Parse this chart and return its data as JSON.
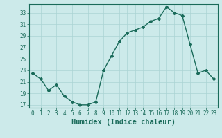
{
  "x": [
    0,
    1,
    2,
    3,
    4,
    5,
    6,
    7,
    8,
    9,
    10,
    11,
    12,
    13,
    14,
    15,
    16,
    17,
    18,
    19,
    20,
    21,
    22,
    23
  ],
  "y": [
    22.5,
    21.5,
    19.5,
    20.5,
    18.5,
    17.5,
    17.0,
    17.0,
    17.5,
    23.0,
    25.5,
    28.0,
    29.5,
    30.0,
    30.5,
    31.5,
    32.0,
    34.0,
    33.0,
    32.5,
    27.5,
    22.5,
    23.0,
    21.5
  ],
  "line_color": "#1a6b5a",
  "marker": "D",
  "markersize": 2,
  "bg_color": "#cceaea",
  "grid_color": "#aad4d4",
  "xlabel": "Humidex (Indice chaleur)",
  "xlim": [
    -0.5,
    23.5
  ],
  "ylim": [
    16.5,
    34.5
  ],
  "yticks": [
    17,
    19,
    21,
    23,
    25,
    27,
    29,
    31,
    33
  ],
  "xticks": [
    0,
    1,
    2,
    3,
    4,
    5,
    6,
    7,
    8,
    9,
    10,
    11,
    12,
    13,
    14,
    15,
    16,
    17,
    18,
    19,
    20,
    21,
    22,
    23
  ],
  "tick_label_size": 5.5,
  "xlabel_size": 7.5,
  "axis_color": "#1a6b5a",
  "linewidth": 1.0
}
